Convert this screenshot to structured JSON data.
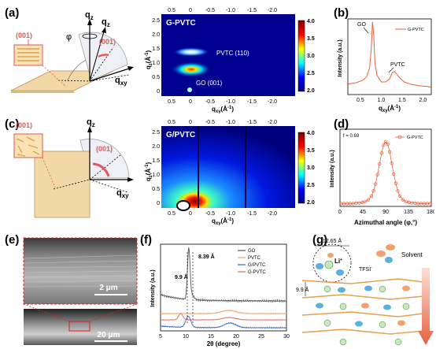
{
  "panels": {
    "a": "(a)",
    "b": "(b)",
    "c": "(c)",
    "d": "(d)",
    "e": "(e)",
    "f": "(f)",
    "g": "(g)"
  },
  "schematic_a": {
    "plane1": "(001)",
    "plane2": "(001)",
    "qz1": "q",
    "qz1_sub": "z",
    "qz2": "q",
    "qz2_sub": "z",
    "phi": "φ",
    "qxy": "q",
    "qxy_sub": "xy"
  },
  "schematic_c": {
    "plane1": "(001)",
    "plane2": "(001)",
    "qz": "q",
    "qz_sub": "z",
    "qxy": "q",
    "qxy_sub": "xy"
  },
  "giwaxs_a": {
    "title": "G-PVTC",
    "annot1": "PVTC (110)",
    "annot2": "GO (001)",
    "ylabel": "q",
    "ylabel_sub": "z",
    "ylabel_unit": "(Å",
    "ylabel_sup": "-1",
    "ylabel_close": ")",
    "xlabel": "q",
    "xlabel_sub": "xy",
    "xlabel_unit": "(Å",
    "xlabel_sup": "-1",
    "xlabel_close": ")",
    "xticks_bottom": [
      "0.5",
      "0",
      "-0.5",
      "-1.0",
      "-1.5",
      "-2.0"
    ],
    "xticks_top": [
      "0.5",
      "0",
      "-0.5",
      "-1.0",
      "-1.5",
      "-2.0"
    ],
    "yticks": [
      "2.5",
      "2.0",
      "1.5",
      "1.0",
      "0.5",
      "0"
    ],
    "colorbar": [
      "4.0",
      "3.5",
      "3.0",
      "2.5",
      "2.0"
    ]
  },
  "giwaxs_c": {
    "title": "G/PVTC",
    "ylabel": "q",
    "ylabel_sub": "z",
    "ylabel_unit": "(Å",
    "ylabel_sup": "-1",
    "ylabel_close": ")",
    "xlabel": "q",
    "xlabel_sub": "xy",
    "xlabel_unit": "(Å",
    "xlabel_sup": "-1",
    "xlabel_close": ")",
    "xticks_bottom": [
      "0.5",
      "0",
      "-0.5",
      "-1.0",
      "-1.5",
      "-2.0"
    ],
    "xticks_top": [
      "0.5",
      "0",
      "-0.5",
      "-1.0",
      "-1.5",
      "-2.0"
    ],
    "yticks": [
      "2.5",
      "2.0",
      "1.5",
      "1.0",
      "0.5",
      "0"
    ],
    "colorbar": [
      "4.0",
      "3.5",
      "3.0",
      "2.5",
      "2.0"
    ]
  },
  "chart_data": [
    {
      "type": "line",
      "panel": "b",
      "series": [
        {
          "name": "G-PVTC",
          "color": "#e8603c",
          "x": [
            0.2,
            0.4,
            0.55,
            0.65,
            0.72,
            0.76,
            0.79,
            0.82,
            0.85,
            0.9,
            1.0,
            1.1,
            1.2,
            1.27,
            1.32,
            1.38,
            1.45,
            1.55,
            1.7,
            1.9,
            2.1,
            2.2
          ],
          "y": [
            0.14,
            0.16,
            0.19,
            0.24,
            0.36,
            0.62,
            0.98,
            0.8,
            0.42,
            0.26,
            0.17,
            0.17,
            0.21,
            0.3,
            0.31,
            0.27,
            0.22,
            0.17,
            0.14,
            0.12,
            0.11,
            0.1
          ]
        }
      ],
      "annotations": [
        "GO",
        "PVTC"
      ],
      "xlabel": "q",
      "xlabel_sub": "xy",
      "xlabel_unit": "(Å",
      "xlabel_sup": "-1",
      "xlabel_close": ")",
      "ylabel": "Intensity (a.u.)",
      "xticks": [
        "0.5",
        "1.0",
        "1.5",
        "2.0"
      ],
      "xlim": [
        0.2,
        2.2
      ]
    },
    {
      "type": "scatter",
      "panel": "d",
      "series": [
        {
          "name": "G-PVTC",
          "color": "#e8603c"
        }
      ],
      "x": [
        2,
        8,
        14,
        20,
        26,
        32,
        38,
        44,
        50,
        56,
        62,
        66,
        70,
        74,
        78,
        82,
        86,
        90,
        94,
        98,
        102,
        106,
        110,
        114,
        118,
        124,
        130,
        136,
        142,
        148,
        154,
        160,
        166,
        172,
        178
      ],
      "y": [
        0.02,
        0.02,
        0.02,
        0.02,
        0.02,
        0.03,
        0.03,
        0.04,
        0.05,
        0.08,
        0.14,
        0.22,
        0.33,
        0.48,
        0.65,
        0.82,
        0.95,
        1.0,
        0.96,
        0.84,
        0.66,
        0.49,
        0.34,
        0.22,
        0.14,
        0.08,
        0.05,
        0.04,
        0.03,
        0.03,
        0.02,
        0.02,
        0.02,
        0.02,
        0.02
      ],
      "annotation": "f = 0.69",
      "xlabel": "Azimuthal angle (φ,°)",
      "ylabel": "Intensity (a.u.)",
      "xticks": [
        "0",
        "45",
        "90",
        "135",
        "180"
      ],
      "xlim": [
        0,
        180
      ]
    },
    {
      "type": "line",
      "panel": "f",
      "xlabel": "2θ (degree)",
      "ylabel": "Intensity (a.u.)",
      "xticks": [
        "5",
        "10",
        "15",
        "20",
        "25",
        "30"
      ],
      "xlim": [
        5,
        30
      ],
      "annotations": [
        "8.39 Å",
        "9.9 Å"
      ],
      "series": [
        {
          "name": "GO",
          "color": "#555555"
        },
        {
          "name": "PVTC",
          "color": "#f0a060"
        },
        {
          "name": "G/PVTC",
          "color": "#3a5fc8"
        },
        {
          "name": "G-PVTC",
          "color": "#e86060"
        }
      ]
    }
  ],
  "sem": {
    "scale1": "2 μm",
    "scale2": "20 μm"
  },
  "schematic_g": {
    "spacing": "12.65 Å",
    "li": "Li",
    "li_sup": "+",
    "tfsi": "TFSI",
    "tfsi_sup": "-",
    "solvent": "Solvent",
    "interlayer": "9.9 Å"
  }
}
